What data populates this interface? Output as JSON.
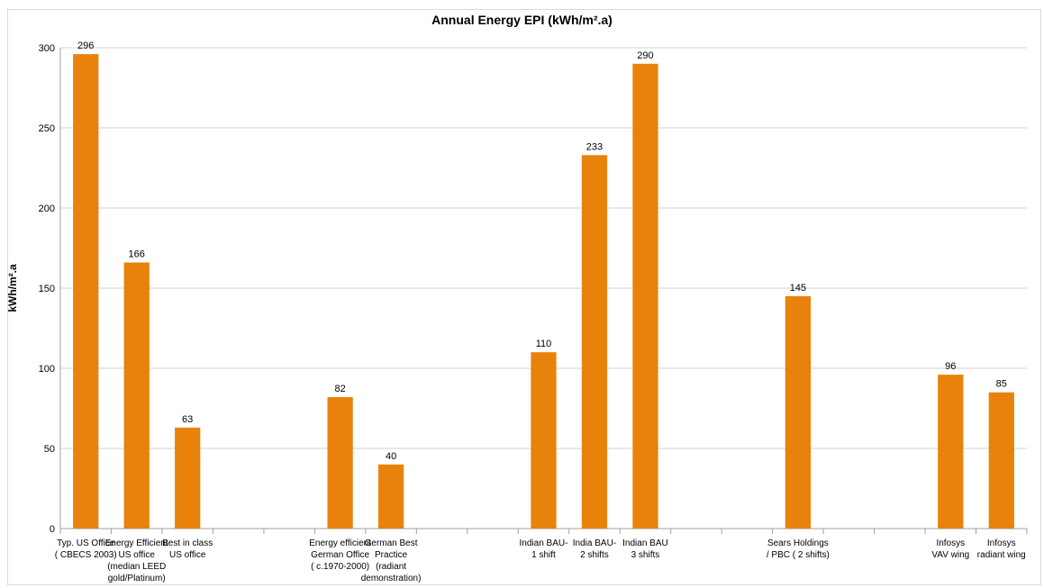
{
  "colors": {
    "bar": "#E8820A",
    "grid": "#d0d0d0",
    "axis": "#a0a0a0",
    "text": "#000000"
  },
  "chart_data": {
    "type": "bar",
    "title": "Annual Energy EPI (kWh/m².a)",
    "xlabel": "",
    "ylabel": "kWh/m².a",
    "ylim": [
      0,
      300
    ],
    "yticks": [
      0,
      50,
      100,
      150,
      200,
      250,
      300
    ],
    "grid": "horizontal",
    "legend": "none",
    "categories": [
      [
        "Typ. US Office",
        "( CBECS 2003)"
      ],
      [
        "Energy Efficient",
        "US office",
        "(median LEED",
        "gold/Platinum)"
      ],
      [
        "Best in class",
        "US office"
      ],
      [],
      [],
      [
        "Energy efficient",
        "German Office",
        "( c.1970-2000)"
      ],
      [
        "German Best",
        "Practice",
        "(radiant",
        "demonstration)"
      ],
      [],
      [],
      [
        "Indian BAU-",
        "1 shift"
      ],
      [
        "India BAU-",
        "2 shifts"
      ],
      [
        "Indian BAU",
        "3 shifts"
      ],
      [],
      [],
      [
        "Sears Holdings",
        "/ PBC ( 2 shifts)"
      ],
      [],
      [],
      [
        "Infosys",
        "VAV wing"
      ],
      [
        "Infosys",
        "radiant wing"
      ]
    ],
    "values": [
      296,
      166,
      63,
      null,
      null,
      82,
      40,
      null,
      null,
      110,
      233,
      290,
      null,
      null,
      145,
      null,
      null,
      96,
      85
    ],
    "data_labels": [
      "296",
      "166",
      "63",
      "",
      "",
      "82",
      "40",
      "",
      "",
      "110",
      "233",
      "290",
      "",
      "",
      "145",
      "",
      "",
      "96",
      "85"
    ]
  }
}
